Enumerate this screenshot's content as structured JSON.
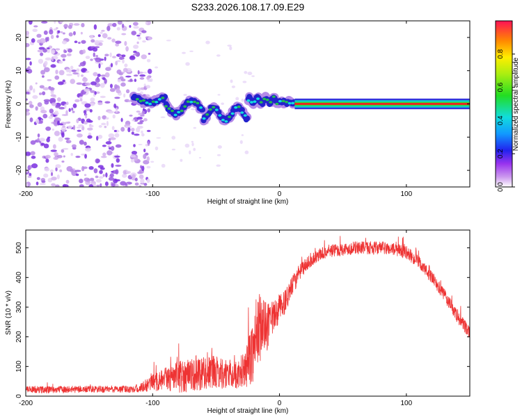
{
  "chart_data": [
    {
      "type": "heatmap",
      "title": "S233.2026.108.17.09.E29",
      "xlabel": "Height of straight line (km)",
      "ylabel": "Frequency (Hz)",
      "xlim": [
        -200,
        150
      ],
      "ylim": [
        -25,
        25
      ],
      "xticks": [
        -200,
        -100,
        0,
        100
      ],
      "yticks": [
        -20,
        -10,
        0,
        10,
        20
      ],
      "colorbar": {
        "label": "Normalized spectral amplitude",
        "range": [
          0,
          1
        ],
        "ticks": [
          "0.0",
          "0.2",
          "0.4",
          "0.6",
          "0.8"
        ],
        "tick_values": [
          0,
          0.2,
          0.4,
          0.6,
          0.8
        ]
      },
      "regions": [
        {
          "name": "scattered noise",
          "x_range": [
            -200,
            -110
          ],
          "f_range": [
            -25,
            25
          ],
          "amplitude": 0.05
        },
        {
          "name": "unstable line",
          "x_range": [
            -115,
            -25
          ],
          "f_range": [
            -7,
            5
          ],
          "amplitude": 0.25
        },
        {
          "name": "converging line",
          "x_range": [
            -25,
            12
          ],
          "f_range": [
            -1.5,
            2.5
          ],
          "amplitude": 0.5
        },
        {
          "name": "steady carrier",
          "x_range": [
            12,
            150
          ],
          "f_range": [
            -1,
            1
          ],
          "amplitude": 1.0
        }
      ]
    },
    {
      "type": "line",
      "xlabel": "Height of straight line (km)",
      "ylabel": "SNR (10 * v/v)",
      "xlim": [
        -200,
        150
      ],
      "ylim": [
        0,
        560
      ],
      "xticks": [
        -200,
        -100,
        0,
        100
      ],
      "yticks": [
        0,
        100,
        200,
        300,
        400,
        500
      ],
      "series": [
        {
          "name": "SNR",
          "color": "#ee3333",
          "x": [
            -200,
            -180,
            -160,
            -140,
            -120,
            -110,
            -100,
            -90,
            -80,
            -70,
            -60,
            -50,
            -40,
            -30,
            -25,
            -20,
            -15,
            -10,
            -5,
            0,
            5,
            10,
            15,
            20,
            30,
            40,
            50,
            60,
            70,
            80,
            90,
            100,
            110,
            120,
            130,
            140,
            150
          ],
          "y": [
            22,
            22,
            23,
            23,
            24,
            26,
            45,
            55,
            65,
            75,
            80,
            80,
            75,
            70,
            110,
            170,
            240,
            230,
            260,
            300,
            320,
            370,
            410,
            440,
            475,
            490,
            495,
            500,
            500,
            500,
            495,
            485,
            450,
            400,
            340,
            270,
            210
          ],
          "noise": [
            12,
            12,
            12,
            12,
            12,
            14,
            30,
            40,
            55,
            60,
            60,
            55,
            50,
            45,
            80,
            120,
            120,
            80,
            60,
            45,
            40,
            35,
            30,
            25,
            22,
            22,
            22,
            22,
            22,
            22,
            22,
            22,
            22,
            22,
            22,
            22,
            22
          ]
        }
      ]
    }
  ]
}
